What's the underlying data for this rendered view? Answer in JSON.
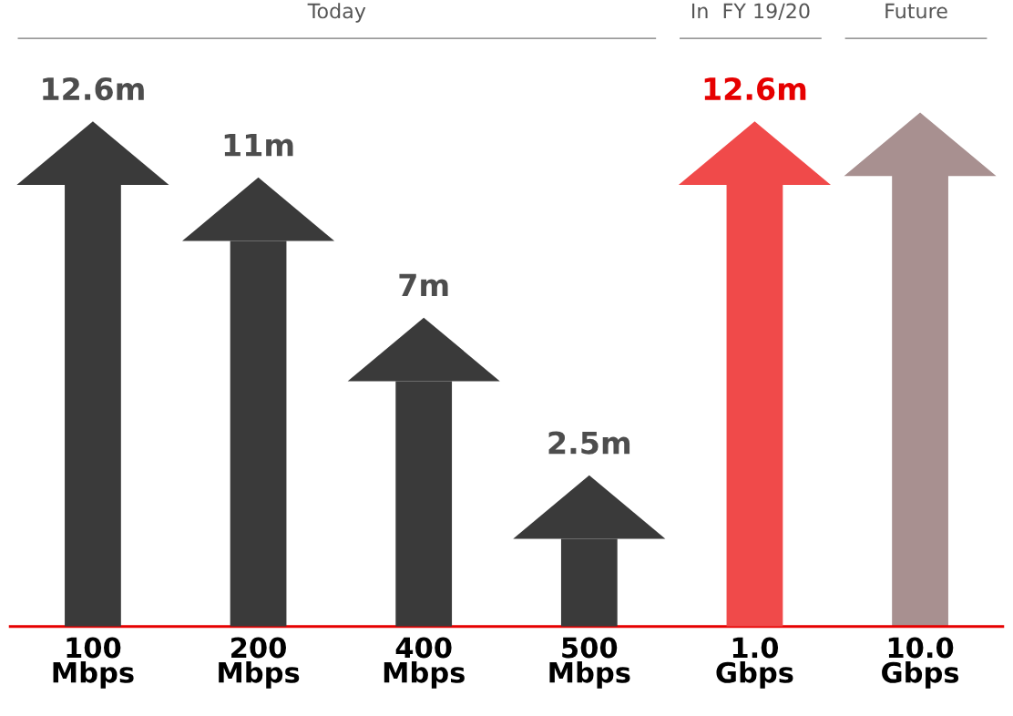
{
  "chart_data": {
    "type": "bar",
    "categories": [
      "100\nMbps",
      "200\nMbps",
      "400\nMbps",
      "500\nMbps",
      "1.0\nGbps",
      "10.0\nGbps"
    ],
    "values": [
      12.6,
      11,
      7,
      2.5,
      12.6,
      null
    ],
    "colors": [
      "#3a3a3a",
      "#3a3a3a",
      "#3a3a3a",
      "#3a3a3a",
      "#f04a4a",
      "#a89090"
    ],
    "value_labels": [
      "12.6m",
      "11m",
      "7m",
      "2.5m",
      "12.6m",
      null
    ],
    "annotations": [
      "Today",
      "In  FY 19/20",
      "Future"
    ],
    "grid": false,
    "legend": false
  }
}
